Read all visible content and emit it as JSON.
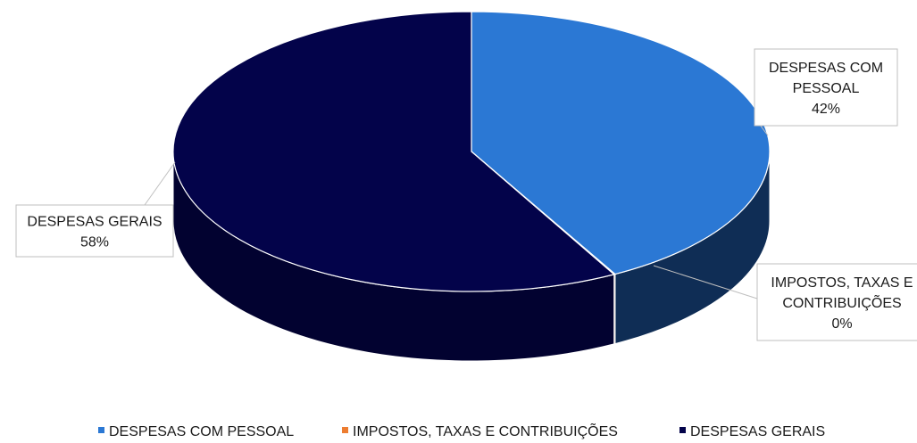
{
  "chart_data": {
    "type": "pie",
    "style": "3d",
    "categories": [
      "DESPESAS COM PESSOAL",
      "IMPOSTOS, TAXAS E CONTRIBUIÇÕES",
      "DESPESAS GERAIS"
    ],
    "values": [
      42,
      0,
      58
    ],
    "value_format": "percent",
    "data_labels": [
      {
        "name": "DESPESAS COM PESSOAL",
        "lines": [
          "DESPESAS COM",
          "PESSOAL"
        ],
        "value": "42%"
      },
      {
        "name": "IMPOSTOS, TAXAS E CONTRIBUIÇÕES",
        "lines": [
          "IMPOSTOS, TAXAS E",
          "CONTRIBUIÇÕES"
        ],
        "value": "0%"
      },
      {
        "name": "DESPESAS GERAIS",
        "lines": [
          "DESPESAS GERAIS"
        ],
        "value": "58%"
      }
    ],
    "colors": [
      "#2b78d4",
      "#ed7d31",
      "#03034a"
    ],
    "side_colors": [
      "#0f2d55",
      "#b35a1a",
      "#020230"
    ],
    "legend": {
      "placement": "bottom",
      "entries": [
        "DESPESAS COM PESSOAL",
        "IMPOSTOS, TAXAS E CONTRIBUIÇÕES",
        "DESPESAS GERAIS"
      ]
    }
  }
}
